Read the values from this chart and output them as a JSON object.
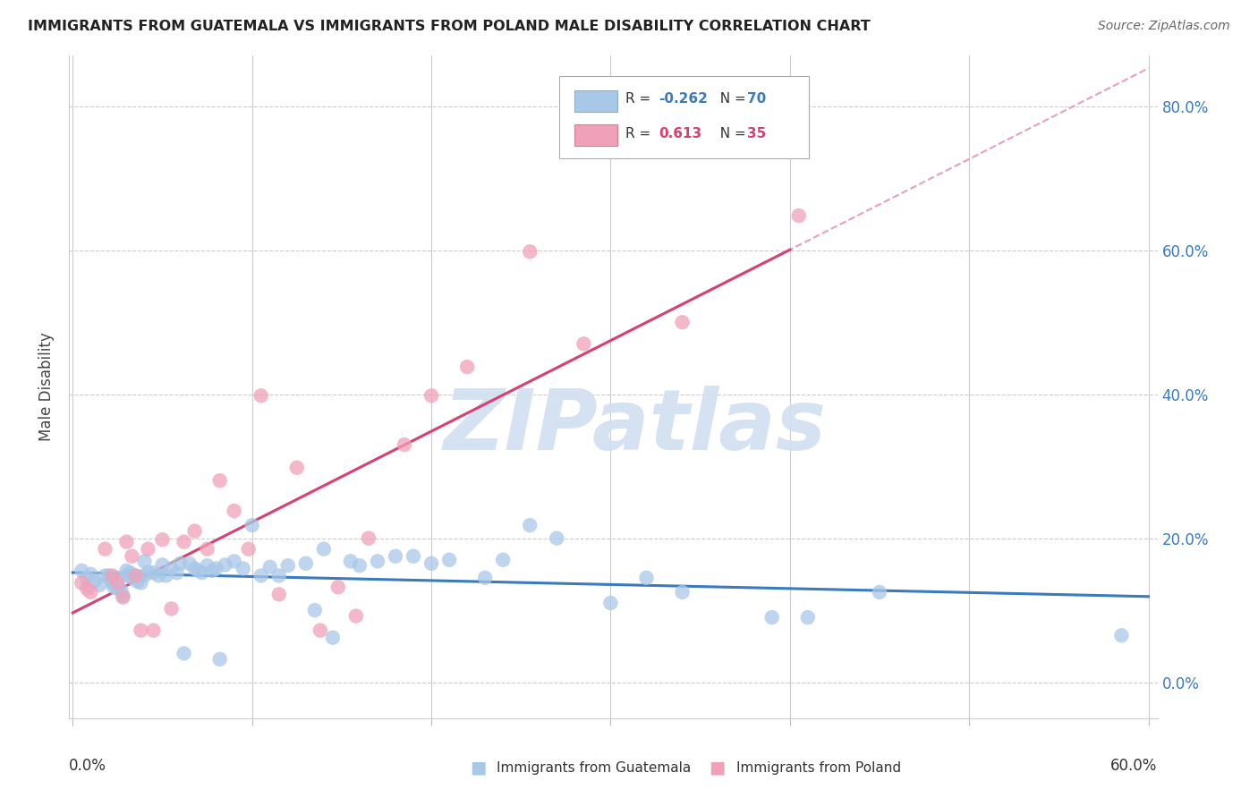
{
  "title": "IMMIGRANTS FROM GUATEMALA VS IMMIGRANTS FROM POLAND MALE DISABILITY CORRELATION CHART",
  "source": "Source: ZipAtlas.com",
  "ylabel": "Male Disability",
  "xlim": [
    0.0,
    0.6
  ],
  "ylim": [
    -0.05,
    0.87
  ],
  "ytick_vals": [
    0.0,
    0.2,
    0.4,
    0.6,
    0.8
  ],
  "color_guatemala": "#a8c8e8",
  "color_poland": "#f0a0b8",
  "color_line_guatemala": "#3a7abf",
  "color_line_poland": "#d94070",
  "color_trendline_ext": "#e8a0b8",
  "watermark_text": "ZIPatlas",
  "watermark_color": "#d0dff0",
  "guatemala_x": [
    0.005,
    0.008,
    0.01,
    0.012,
    0.015,
    0.018,
    0.02,
    0.022,
    0.022,
    0.023,
    0.025,
    0.025,
    0.027,
    0.028,
    0.03,
    0.03,
    0.032,
    0.033,
    0.035,
    0.036,
    0.038,
    0.04,
    0.04,
    0.042,
    0.045,
    0.048,
    0.05,
    0.052,
    0.055,
    0.058,
    0.06,
    0.062,
    0.065,
    0.068,
    0.07,
    0.072,
    0.075,
    0.078,
    0.08,
    0.082,
    0.085,
    0.09,
    0.095,
    0.1,
    0.105,
    0.11,
    0.115,
    0.12,
    0.13,
    0.135,
    0.14,
    0.145,
    0.155,
    0.16,
    0.17,
    0.18,
    0.19,
    0.2,
    0.21,
    0.23,
    0.24,
    0.255,
    0.27,
    0.3,
    0.32,
    0.34,
    0.39,
    0.41,
    0.45,
    0.585
  ],
  "guatemala_y": [
    0.155,
    0.145,
    0.15,
    0.14,
    0.135,
    0.148,
    0.148,
    0.14,
    0.138,
    0.132,
    0.145,
    0.13,
    0.128,
    0.12,
    0.155,
    0.148,
    0.152,
    0.145,
    0.148,
    0.14,
    0.138,
    0.168,
    0.148,
    0.153,
    0.152,
    0.148,
    0.163,
    0.148,
    0.158,
    0.152,
    0.165,
    0.04,
    0.165,
    0.158,
    0.155,
    0.152,
    0.162,
    0.155,
    0.158,
    0.032,
    0.163,
    0.168,
    0.158,
    0.218,
    0.148,
    0.16,
    0.148,
    0.162,
    0.165,
    0.1,
    0.185,
    0.062,
    0.168,
    0.162,
    0.168,
    0.175,
    0.175,
    0.165,
    0.17,
    0.145,
    0.17,
    0.218,
    0.2,
    0.11,
    0.145,
    0.125,
    0.09,
    0.09,
    0.125,
    0.065
  ],
  "poland_x": [
    0.005,
    0.008,
    0.01,
    0.018,
    0.022,
    0.025,
    0.028,
    0.03,
    0.033,
    0.035,
    0.038,
    0.042,
    0.045,
    0.05,
    0.055,
    0.062,
    0.068,
    0.075,
    0.082,
    0.09,
    0.098,
    0.105,
    0.115,
    0.125,
    0.138,
    0.148,
    0.158,
    0.165,
    0.185,
    0.2,
    0.22,
    0.255,
    0.285,
    0.34,
    0.405
  ],
  "poland_y": [
    0.138,
    0.13,
    0.125,
    0.185,
    0.148,
    0.138,
    0.118,
    0.195,
    0.175,
    0.148,
    0.072,
    0.185,
    0.072,
    0.198,
    0.102,
    0.195,
    0.21,
    0.185,
    0.28,
    0.238,
    0.185,
    0.398,
    0.122,
    0.298,
    0.072,
    0.132,
    0.092,
    0.2,
    0.33,
    0.398,
    0.438,
    0.598,
    0.47,
    0.5,
    0.648
  ]
}
